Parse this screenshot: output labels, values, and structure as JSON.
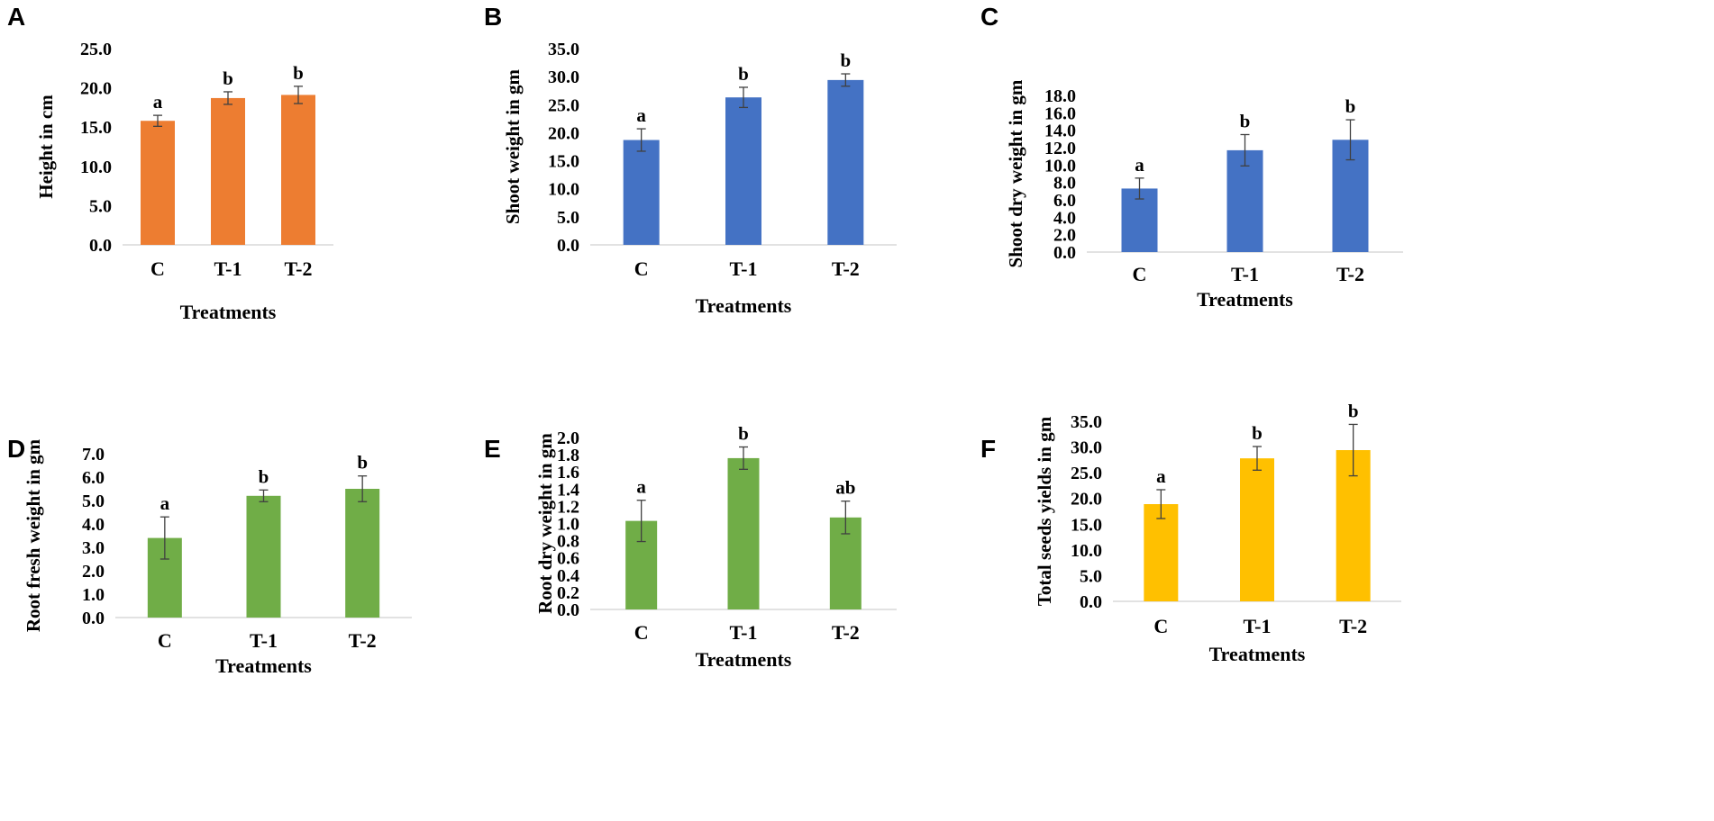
{
  "figure": {
    "panels": [
      "A",
      "B",
      "C",
      "D",
      "E",
      "F"
    ]
  },
  "chart_data": [
    {
      "panel": "A",
      "type": "bar",
      "categories": [
        "C",
        "T-1",
        "T-2"
      ],
      "values": [
        15.8,
        18.7,
        19.1
      ],
      "errors": [
        0.7,
        0.8,
        1.1
      ],
      "significance": [
        "a",
        "b",
        "b"
      ],
      "color": "#ED7D31",
      "xlabel": "Treatments",
      "ylabel": "Height in cm",
      "ylim": [
        0,
        25
      ],
      "yticks": [
        "0.0",
        "5.0",
        "10.0",
        "15.0",
        "20.0",
        "25.0"
      ]
    },
    {
      "panel": "B",
      "type": "bar",
      "categories": [
        "C",
        "T-1",
        "T-2"
      ],
      "values": [
        18.7,
        26.3,
        29.4
      ],
      "errors": [
        2.0,
        1.8,
        1.1
      ],
      "significance": [
        "a",
        "b",
        "b"
      ],
      "color": "#4472C4",
      "xlabel": "Treatments",
      "ylabel": "Shoot weight in gm",
      "ylim": [
        0,
        35
      ],
      "yticks": [
        "0.0",
        "5.0",
        "10.0",
        "15.0",
        "20.0",
        "25.0",
        "30.0",
        "35.0"
      ]
    },
    {
      "panel": "C",
      "type": "bar",
      "categories": [
        "C",
        "T-1",
        "T-2"
      ],
      "values": [
        7.3,
        11.7,
        12.9
      ],
      "errors": [
        1.2,
        1.8,
        2.3
      ],
      "significance": [
        "a",
        "b",
        "b"
      ],
      "color": "#4472C4",
      "xlabel": "Treatments",
      "ylabel": "Shoot dry weight in gm",
      "ylim": [
        0,
        18
      ],
      "yticks": [
        "0.0",
        "2.0",
        "4.0",
        "6.0",
        "8.0",
        "10.0",
        "12.0",
        "14.0",
        "16.0",
        "18.0"
      ]
    },
    {
      "panel": "D",
      "type": "bar",
      "categories": [
        "C",
        "T-1",
        "T-2"
      ],
      "values": [
        3.4,
        5.2,
        5.5
      ],
      "errors": [
        0.9,
        0.25,
        0.55
      ],
      "significance": [
        "a",
        "b",
        "b"
      ],
      "color": "#70AD47",
      "xlabel": "Treatments",
      "ylabel": "Root fresh weight in gm",
      "ylim": [
        0,
        7
      ],
      "yticks": [
        "0.0",
        "1.0",
        "2.0",
        "3.0",
        "4.0",
        "5.0",
        "6.0",
        "7.0"
      ]
    },
    {
      "panel": "E",
      "type": "bar",
      "categories": [
        "C",
        "T-1",
        "T-2"
      ],
      "values": [
        1.03,
        1.76,
        1.07
      ],
      "errors": [
        0.24,
        0.13,
        0.19
      ],
      "significance": [
        "a",
        "b",
        "ab"
      ],
      "color": "#70AD47",
      "xlabel": "Treatments",
      "ylabel": "Root dry weight in gm",
      "ylim": [
        0,
        2
      ],
      "yticks": [
        "0.0",
        "0.2",
        "0.4",
        "0.6",
        "0.8",
        "1.0",
        "1.2",
        "1.4",
        "1.6",
        "1.8",
        "2.0"
      ]
    },
    {
      "panel": "F",
      "type": "bar",
      "categories": [
        "C",
        "T-1",
        "T-2"
      ],
      "values": [
        18.9,
        27.8,
        29.4
      ],
      "errors": [
        2.8,
        2.3,
        5.0
      ],
      "significance": [
        "a",
        "b",
        "b"
      ],
      "color": "#FFC000",
      "xlabel": "Treatments",
      "ylabel": "Total seeds yields in gm",
      "ylim": [
        0,
        35
      ],
      "yticks": [
        "0.0",
        "5.0",
        "10.0",
        "15.0",
        "20.0",
        "25.0",
        "30.0",
        "35.0"
      ]
    }
  ]
}
